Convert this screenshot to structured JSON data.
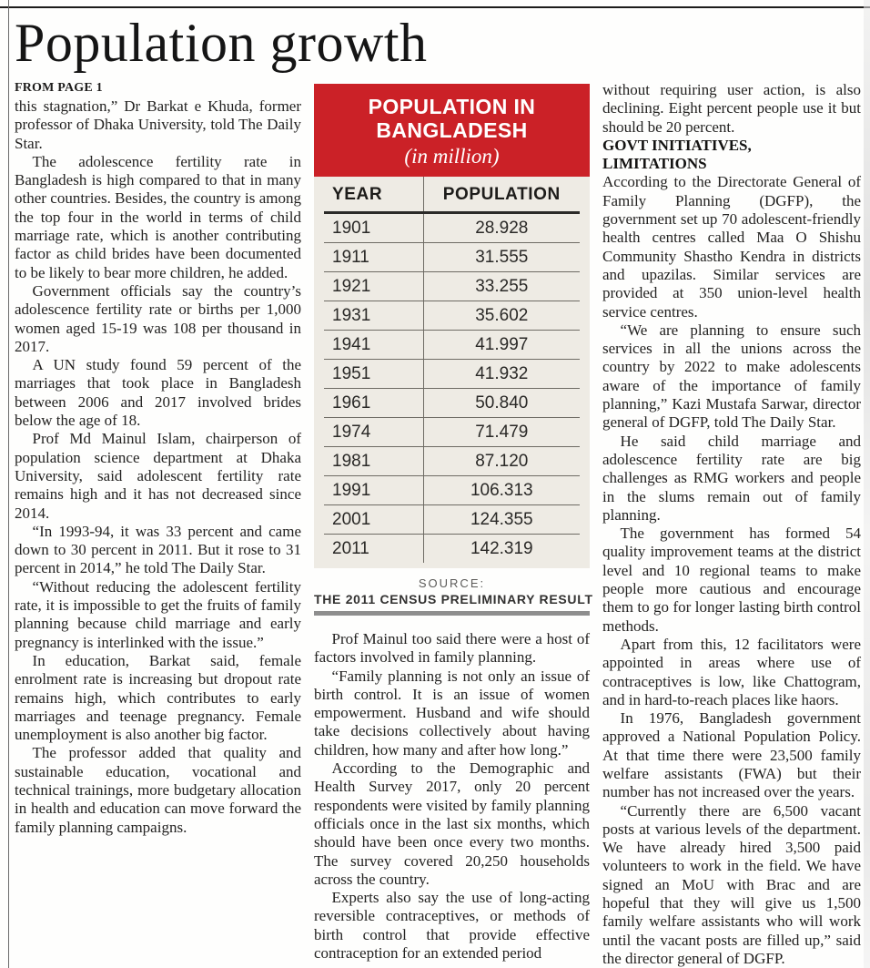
{
  "page": {
    "headline": "Population growth",
    "kicker": "FROM PAGE 1"
  },
  "article": {
    "col1": [
      "this stagnation,” Dr Barkat e Khuda, former professor of Dhaka University, told The Daily Star.",
      "The adolescence fertility rate in Bangladesh is high compared to that in many other countries. Besides, the country is among the top four in the world in terms of child marriage rate, which is another contributing factor as child brides have been documented to be likely to bear more children, he added.",
      "Government officials say the country’s adolescence fertility rate or births per 1,000 women aged 15-19 was 108 per thousand in 2017.",
      "A UN study found 59 percent of the marriages that took place in Bangladesh between 2006 and 2017 involved brides below the age of 18.",
      "Prof Md Mainul Islam, chairperson of population science department at Dhaka University, said adolescent fertility rate remains high and it has not decreased since 2014.",
      "“In 1993-94, it was 33 percent and came down to 30 percent in 2011. But it rose to 31 percent in 2014,” he told The Daily Star.",
      "“Without reducing the adolescent fertility rate, it is impossible to get the fruits of family planning because child marriage and early pregnancy is interlinked with the issue.”",
      "In education, Barkat said, female enrolment rate is increasing but dropout rate remains high, which contributes to early marriages and teenage pregnancy. Female unemployment is also another big factor.",
      "The professor added that quality and sustainable education, vocational and technical trainings, more budgetary allocation in health and education can move forward the family planning campaigns."
    ],
    "col2": [
      "Prof Mainul too said there were a host of factors involved in family planning.",
      "“Family planning is not only an issue of birth control. It is an issue of women empowerment. Husband and wife should take decisions collectively about having children, how many and after how long.”",
      "According to the Demographic and Health Survey 2017, only 20 percent respondents were visited by family planning officials once in the last six months, which should have been once every two months. The survey covered 20,250 households across the country.",
      "Experts also say the use of long-acting reversible contraceptives, or methods of birth control that provide effective contraception for an extended period"
    ],
    "col3_intro": "without requiring user action, is also declining. Eight percent people use it but should be 20 percent.",
    "col3_heading_line1": "GOVT INITIATIVES,",
    "col3_heading_line2": "LIMITATIONS",
    "col3": [
      "According to the Directorate General of Family Planning (DGFP), the government set up 70 adolescent-friendly health centres called Maa O Shishu Community Shastho Kendra in districts and upazilas. Similar services are provided at 350 union-level health service centres.",
      "“We are planning to ensure such services in all the unions across the country by 2022 to make adolescents aware of the importance of family planning,” Kazi Mustafa Sarwar, director general of DGFP, told The Daily Star.",
      "He said child marriage and adolescence fertility rate are big challenges as RMG workers and people in the slums remain out of family planning.",
      "The government has formed 54 quality improvement teams at the district level and 10 regional teams to make people more cautious and encourage them to go for longer lasting birth control methods.",
      "Apart from this, 12 facilitators were appointed in areas where use of contraceptives is low, like Chattogram, and in hard-to-reach places like haors.",
      "In 1976, Bangladesh government approved a National Population Policy. At that time there were 23,500 family welfare assistants (FWA) but their number has not increased over the years.",
      "“Currently there are 6,500 vacant posts at various levels of the department. We have already hired 3,500 paid volunteers to work in the field. We have signed an MoU with Brac and are hopeful that they will give us 1,500 family welfare assistants who will work until the vacant posts are filled up,” said the director general of DGFP."
    ]
  },
  "infographic": {
    "title_line1": "POPULATION IN",
    "title_line2": "BANGLADESH",
    "subtitle": "(in million)",
    "col_headers": [
      "YEAR",
      "POPULATION"
    ],
    "rows": [
      {
        "year": "1901",
        "population": "28.928"
      },
      {
        "year": "1911",
        "population": "31.555"
      },
      {
        "year": "1921",
        "population": "33.255"
      },
      {
        "year": "1931",
        "population": "35.602"
      },
      {
        "year": "1941",
        "population": "41.997"
      },
      {
        "year": "1951",
        "population": "41.932"
      },
      {
        "year": "1961",
        "population": "50.840"
      },
      {
        "year": "1974",
        "population": "71.479"
      },
      {
        "year": "1981",
        "population": "87.120"
      },
      {
        "year": "1991",
        "population": "106.313"
      },
      {
        "year": "2001",
        "population": "124.355"
      },
      {
        "year": "2011",
        "population": "142.319"
      }
    ],
    "source_label": "SOURCE:",
    "source_value": "THE 2011 CENSUS PRELIMINARY RESULT",
    "colors": {
      "accent_red": "#cb2127",
      "panel_bg": "#eeebe4",
      "source_bar": "#8e8e8e"
    }
  },
  "chart_data": {
    "type": "table",
    "title": "POPULATION IN BANGLADESH (in million)",
    "columns": [
      "YEAR",
      "POPULATION"
    ],
    "rows": [
      [
        1901,
        28.928
      ],
      [
        1911,
        31.555
      ],
      [
        1921,
        33.255
      ],
      [
        1931,
        35.602
      ],
      [
        1941,
        41.997
      ],
      [
        1951,
        41.932
      ],
      [
        1961,
        50.84
      ],
      [
        1974,
        71.479
      ],
      [
        1981,
        87.12
      ],
      [
        1991,
        106.313
      ],
      [
        2001,
        124.355
      ],
      [
        2011,
        142.319
      ]
    ],
    "source": "THE 2011 CENSUS PRELIMINARY RESULT"
  }
}
